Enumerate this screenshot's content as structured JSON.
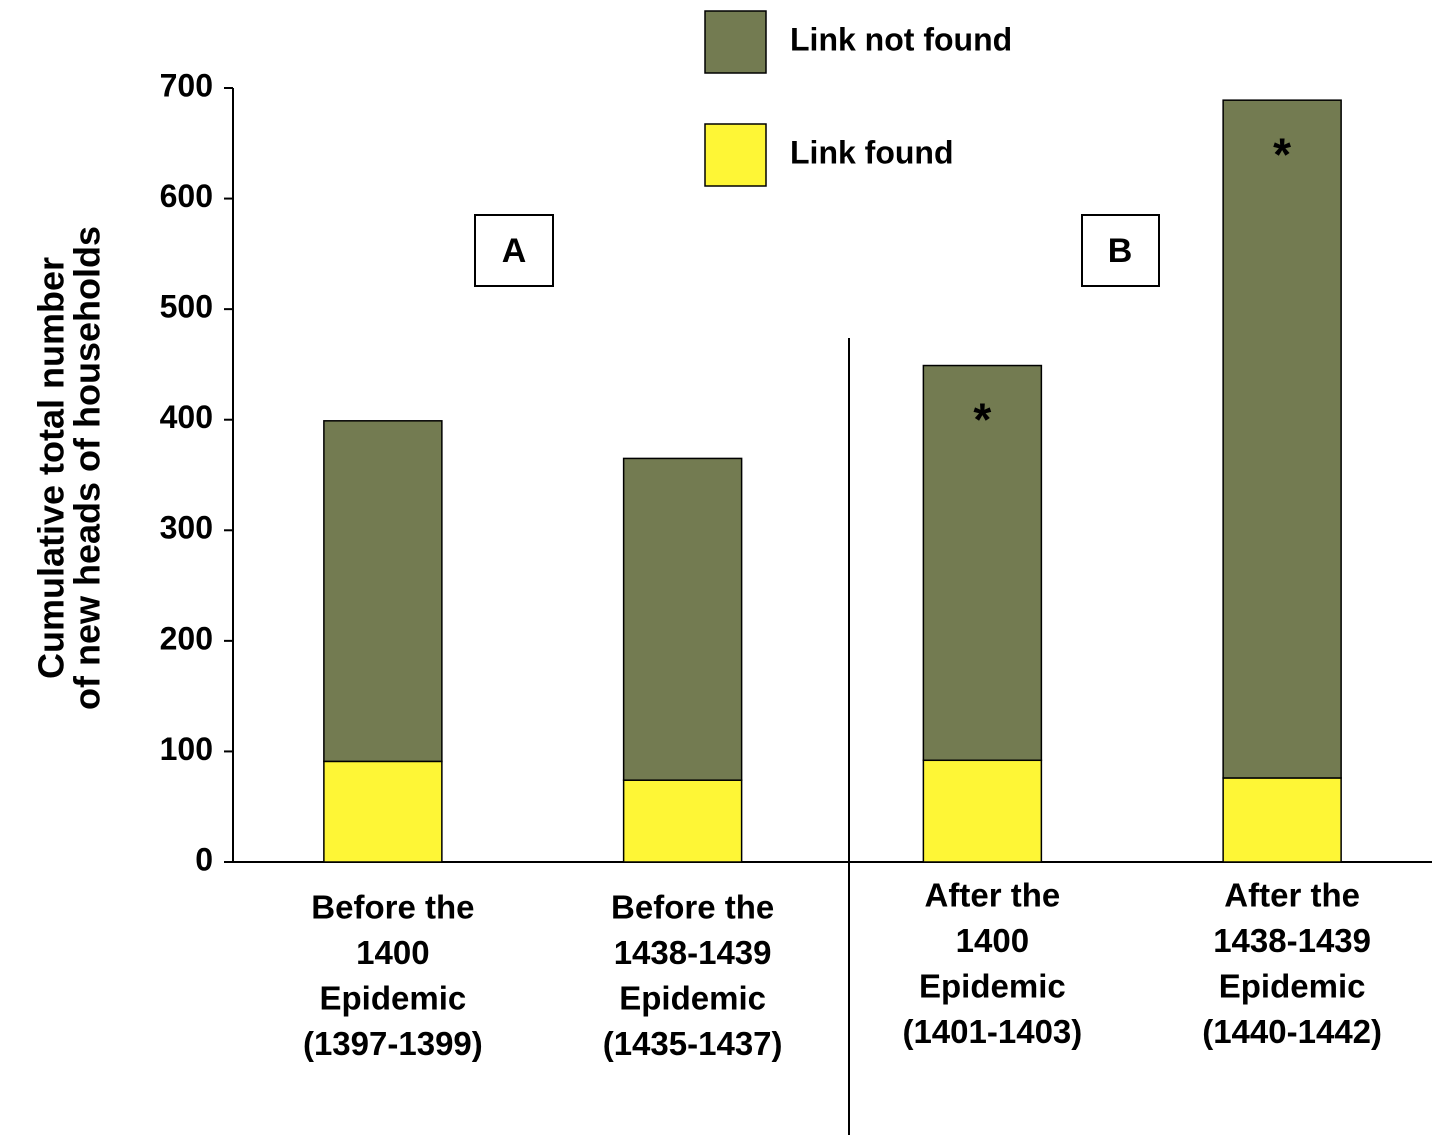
{
  "chart_data": {
    "type": "stacked_bar",
    "y_label": [
      "Cumulative total number",
      "of new heads of households"
    ],
    "categories": [
      [
        "Before the",
        "1400",
        "Epidemic",
        "(1397-1399)"
      ],
      [
        "Before the",
        "1438-1439",
        "Epidemic",
        "(1435-1437)"
      ],
      [
        "After the",
        "1400",
        "Epidemic",
        "(1401-1403)"
      ],
      [
        "After the",
        "1438-1439",
        "Epidemic",
        "(1440-1442)"
      ]
    ],
    "series": [
      {
        "name": "Link found",
        "color": "#fef636",
        "values": [
          91,
          74,
          92,
          76
        ]
      },
      {
        "name": "Link not found",
        "color": "#737b51",
        "values": [
          308,
          291,
          357,
          613
        ]
      }
    ],
    "markers": [
      null,
      null,
      "*",
      "*"
    ],
    "panels": [
      "A",
      "B"
    ],
    "ylim": [
      0,
      700
    ],
    "yticks": [
      0,
      100,
      200,
      300,
      400,
      500,
      600,
      700
    ]
  }
}
